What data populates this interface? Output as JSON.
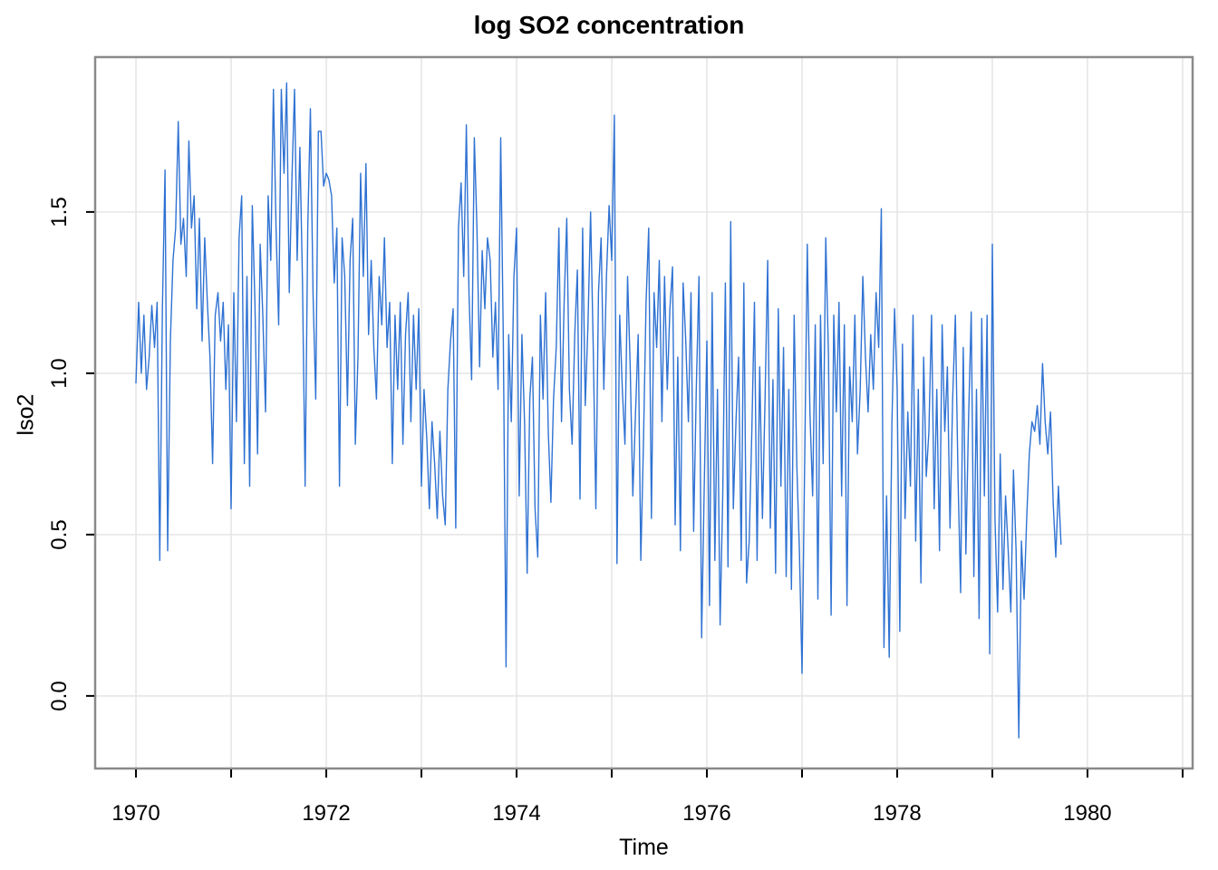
{
  "chart_data": {
    "type": "line",
    "title": "log SO2 concentration",
    "xlabel": "Time",
    "ylabel": "lso2",
    "xlim": [
      1969.571,
      1981.105
    ],
    "ylim": [
      -0.225,
      1.98
    ],
    "grid": true,
    "legend_position": "none",
    "x_gridline_years": [
      1970,
      1971,
      1972,
      1973,
      1974,
      1975,
      1976,
      1977,
      1978,
      1979,
      1980,
      1981
    ],
    "x_labeled_ticks": [
      {
        "value": 1970,
        "label": "1970"
      },
      {
        "value": 1972,
        "label": "1972"
      },
      {
        "value": 1974,
        "label": "1974"
      },
      {
        "value": 1976,
        "label": "1976"
      },
      {
        "value": 1978,
        "label": "1978"
      },
      {
        "value": 1980,
        "label": "1980"
      }
    ],
    "y_ticks": [
      {
        "value": 0.0,
        "label": "0.0"
      },
      {
        "value": 0.5,
        "label": "0.5"
      },
      {
        "value": 1.0,
        "label": "1.0"
      },
      {
        "value": 1.5,
        "label": "1.5"
      }
    ],
    "line_color": "#2f72d2",
    "grid_color": "#e6e6e6",
    "border_color": "#8a8a8a",
    "tick_color": "#000000",
    "x_start": 1970.0,
    "points_per_year": 36,
    "x_end": 1979.72,
    "values": [
      0.97,
      1.22,
      1.0,
      1.18,
      0.95,
      1.05,
      1.21,
      1.08,
      1.22,
      0.42,
      1.2,
      1.63,
      0.45,
      1.1,
      1.35,
      1.45,
      1.78,
      1.4,
      1.48,
      1.3,
      1.72,
      1.45,
      1.55,
      1.2,
      1.48,
      1.1,
      1.42,
      1.22,
      1.05,
      0.72,
      1.18,
      1.25,
      1.1,
      1.22,
      0.95,
      1.15,
      0.58,
      1.25,
      0.85,
      1.42,
      1.55,
      0.72,
      1.3,
      0.65,
      1.52,
      1.22,
      0.75,
      1.4,
      1.18,
      0.88,
      1.55,
      1.35,
      1.88,
      1.45,
      1.15,
      1.88,
      1.62,
      1.9,
      1.25,
      1.6,
      1.88,
      1.35,
      1.7,
      1.28,
      0.65,
      1.45,
      1.82,
      1.25,
      0.92,
      1.75,
      1.75,
      1.58,
      1.62,
      1.6,
      1.55,
      1.28,
      1.45,
      0.65,
      1.42,
      1.3,
      0.9,
      1.35,
      1.48,
      0.78,
      1.05,
      1.62,
      1.3,
      1.65,
      1.12,
      1.35,
      1.08,
      0.92,
      1.3,
      1.15,
      1.42,
      1.08,
      1.22,
      0.72,
      1.18,
      0.95,
      1.22,
      0.78,
      1.12,
      1.25,
      0.85,
      1.18,
      0.95,
      1.2,
      0.65,
      0.95,
      0.8,
      0.58,
      0.85,
      0.72,
      0.55,
      0.82,
      0.62,
      0.53,
      0.95,
      1.1,
      1.2,
      0.52,
      1.45,
      1.59,
      1.3,
      1.77,
      1.25,
      0.98,
      1.73,
      1.45,
      1.02,
      1.38,
      1.2,
      1.42,
      1.35,
      1.05,
      1.22,
      0.95,
      1.73,
      1.1,
      0.09,
      1.12,
      0.85,
      1.3,
      1.45,
      0.62,
      1.12,
      0.85,
      0.38,
      0.92,
      1.05,
      0.58,
      0.43,
      1.18,
      0.92,
      1.25,
      0.82,
      0.6,
      0.92,
      1.08,
      1.45,
      0.85,
      1.22,
      1.48,
      0.95,
      0.78,
      1.12,
      1.32,
      0.61,
      1.45,
      0.9,
      1.15,
      1.5,
      1.08,
      0.58,
      1.25,
      1.42,
      0.95,
      1.3,
      1.52,
      1.35,
      1.8,
      0.41,
      1.18,
      0.95,
      0.78,
      1.3,
      1.02,
      0.62,
      0.88,
      1.12,
      0.42,
      0.78,
      1.22,
      1.45,
      0.55,
      1.25,
      1.08,
      1.35,
      0.85,
      1.3,
      0.95,
      1.2,
      1.33,
      0.53,
      1.05,
      0.45,
      1.28,
      1.1,
      0.85,
      1.25,
      0.51,
      0.95,
      1.3,
      0.18,
      0.65,
      1.1,
      0.28,
      1.25,
      0.42,
      0.95,
      0.22,
      0.62,
      1.28,
      0.4,
      1.47,
      0.58,
      0.85,
      1.05,
      0.42,
      1.28,
      0.35,
      0.48,
      0.82,
      1.22,
      0.42,
      1.02,
      0.55,
      0.92,
      1.35,
      0.52,
      0.98,
      0.38,
      1.2,
      0.65,
      1.08,
      0.37,
      0.95,
      0.33,
      1.18,
      0.72,
      0.45,
      0.07,
      0.72,
      1.4,
      0.88,
      0.62,
      1.15,
      0.3,
      1.18,
      0.72,
      1.42,
      1.05,
      0.25,
      1.18,
      0.88,
      1.22,
      0.62,
      1.15,
      0.28,
      1.02,
      0.85,
      1.18,
      0.75,
      0.95,
      1.3,
      1.05,
      0.88,
      1.12,
      0.95,
      1.25,
      1.08,
      1.51,
      0.15,
      0.62,
      0.12,
      0.85,
      1.2,
      0.95,
      0.2,
      1.09,
      0.55,
      0.88,
      0.65,
      1.18,
      0.48,
      0.95,
      0.35,
      1.05,
      0.68,
      0.82,
      1.18,
      0.58,
      0.95,
      0.45,
      1.15,
      0.82,
      1.02,
      0.52,
      0.92,
      1.18,
      0.68,
      0.32,
      1.08,
      0.44,
      0.85,
      1.19,
      0.37,
      0.95,
      0.24,
      1.17,
      0.62,
      1.18,
      0.13,
      1.4,
      0.55,
      0.26,
      0.75,
      0.33,
      0.62,
      0.45,
      0.26,
      0.7,
      0.45,
      -0.13,
      0.48,
      0.3,
      0.55,
      0.75,
      0.85,
      0.82,
      0.9,
      0.78,
      1.03,
      0.85,
      0.75,
      0.88,
      0.6,
      0.43,
      0.65,
      0.47
    ]
  }
}
